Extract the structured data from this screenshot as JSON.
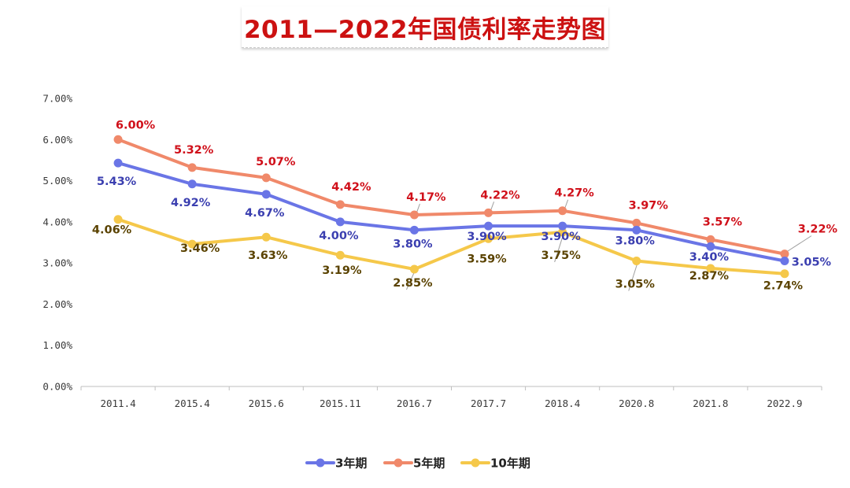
{
  "chart_data": {
    "type": "line",
    "title": "2011—2022年国债利率走势图",
    "categories": [
      "2011.4",
      "2015.4",
      "2015.6",
      "2015.11",
      "2016.7",
      "2017.7",
      "2018.4",
      "2020.8",
      "2021.8",
      "2022.9"
    ],
    "y_ticks": [
      "0.00%",
      "1.00%",
      "2.00%",
      "3.00%",
      "4.00%",
      "5.00%",
      "6.00%",
      "7.00%"
    ],
    "ylim": [
      0,
      7
    ],
    "grid": false,
    "legend_position": "bottom",
    "series": [
      {
        "name": "3年期",
        "color": "#6a75e6",
        "label_color": "#3b3fb0",
        "values": [
          5.43,
          4.92,
          4.67,
          4.0,
          3.8,
          3.9,
          3.9,
          3.8,
          3.4,
          3.05
        ],
        "labels": [
          "5.43%",
          "4.92%",
          "4.67%",
          "4.00%",
          "3.80%",
          "3.90%",
          "3.90%",
          "3.80%",
          "3.40%",
          "3.05%"
        ]
      },
      {
        "name": "5年期",
        "color": "#f0896a",
        "label_color": "#d0101a",
        "values": [
          6.0,
          5.32,
          5.07,
          4.42,
          4.17,
          4.22,
          4.27,
          3.97,
          3.57,
          3.22
        ],
        "labels": [
          "6.00%",
          "5.32%",
          "5.07%",
          "4.42%",
          "4.17%",
          "4.22%",
          "4.27%",
          "3.97%",
          "3.57%",
          "3.22%"
        ]
      },
      {
        "name": "10年期",
        "color": "#f5c84a",
        "label_color": "#5a4200",
        "values": [
          4.06,
          3.46,
          3.63,
          3.19,
          2.85,
          3.59,
          3.75,
          3.05,
          2.87,
          2.74
        ],
        "labels": [
          "4.06%",
          "3.46%",
          "3.63%",
          "3.19%",
          "2.85%",
          "3.59%",
          "3.75%",
          "3.05%",
          "2.87%",
          "2.74%"
        ]
      }
    ]
  }
}
